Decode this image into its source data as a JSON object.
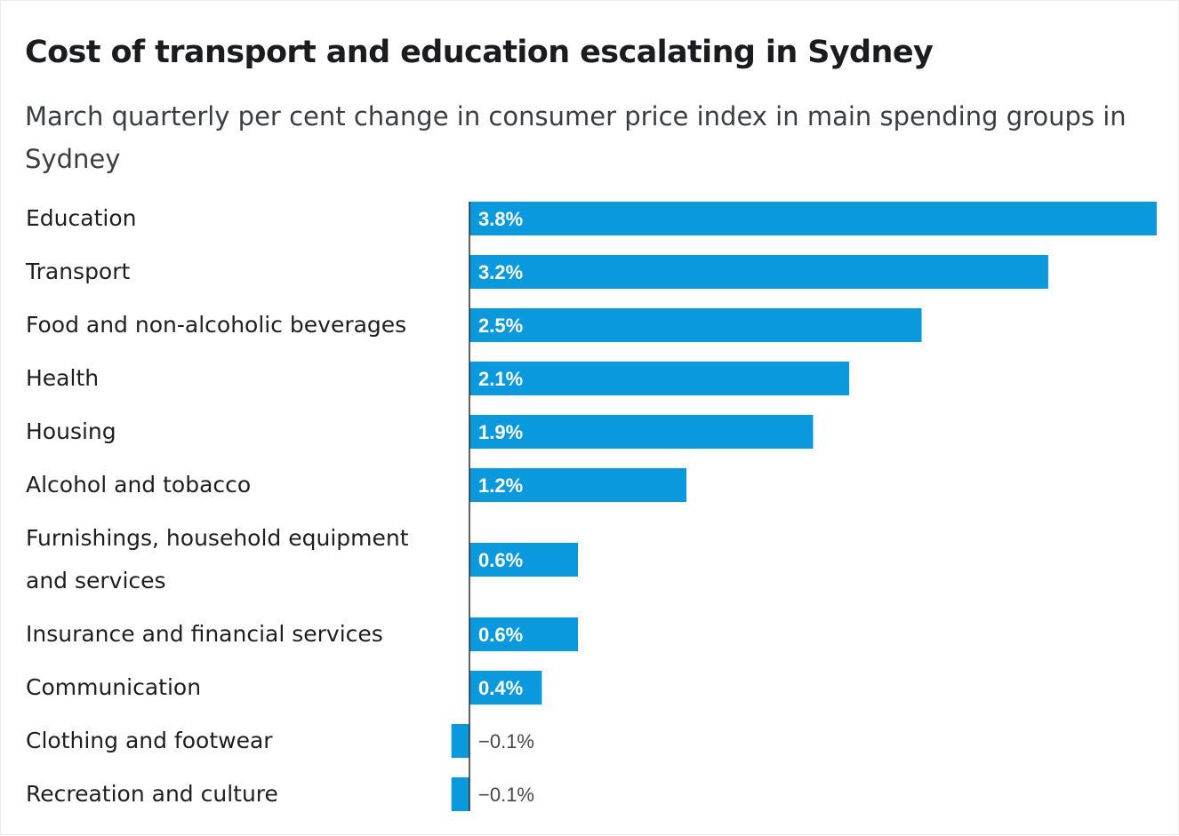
{
  "chart_data": {
    "type": "bar",
    "orientation": "horizontal",
    "title": "Cost of transport and education escalating in Sydney",
    "subtitle": "March quarterly per cent change in consumer price index in main spending groups in Sydney",
    "categories": [
      "Education",
      "Transport",
      "Food and non-alcoholic beverages",
      "Health",
      "Housing",
      "Alcohol and tobacco",
      "Furnishings, household equipment and services",
      "Insurance and financial services",
      "Communication",
      "Clothing and footwear",
      "Recreation and culture"
    ],
    "values": [
      3.8,
      3.2,
      2.5,
      2.1,
      1.9,
      1.2,
      0.6,
      0.6,
      0.4,
      -0.1,
      -0.1
    ],
    "value_labels": [
      "3.8%",
      "3.2%",
      "2.5%",
      "2.1%",
      "1.9%",
      "1.2%",
      "0.6%",
      "0.6%",
      "0.4%",
      "−0.1%",
      "−0.1%"
    ],
    "xlim": [
      -0.1,
      3.8
    ],
    "unit": "%",
    "color": "#0a99dc",
    "grid": false,
    "legend": "none"
  }
}
